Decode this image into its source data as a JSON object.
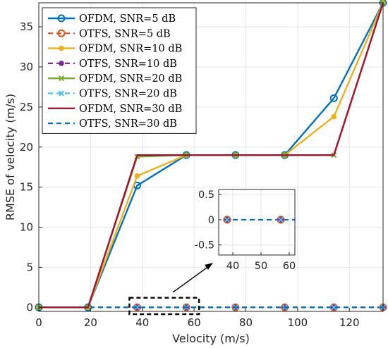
{
  "chart_data": {
    "type": "line",
    "xlabel": "Velocity (m/s)",
    "ylabel": "RMSE of velocity (m/s)",
    "xlim": [
      0,
      133
    ],
    "ylim": [
      -0.5,
      38
    ],
    "xticks": [
      0,
      20,
      40,
      60,
      80,
      100,
      120
    ],
    "yticks": [
      0,
      5,
      10,
      15,
      20,
      25,
      30,
      35
    ],
    "x": [
      0,
      19,
      38,
      57,
      76,
      95,
      114,
      133
    ],
    "grid": true,
    "legend_position": "top-left",
    "series": [
      {
        "name": "OFDM, SNR=5 dB",
        "color": "#0072bd",
        "style": "solid",
        "marker": "circle-open",
        "values": [
          0,
          0,
          15.2,
          19,
          19,
          19,
          26.1,
          38
        ]
      },
      {
        "name": "OTFS, SNR=5 dB",
        "color": "#d95319",
        "style": "dashed",
        "marker": "circle-open",
        "values": [
          0,
          0,
          0,
          0,
          0,
          0,
          0,
          0
        ]
      },
      {
        "name": "OFDM, SNR=10 dB",
        "color": "#edb120",
        "style": "solid",
        "marker": "dot",
        "values": [
          0,
          0,
          16.4,
          19,
          19,
          19,
          23.8,
          38
        ]
      },
      {
        "name": "OTFS, SNR=10 dB",
        "color": "#7e2f8e",
        "style": "dashed",
        "marker": "dot",
        "values": [
          0,
          0,
          0,
          0,
          0,
          0,
          0,
          0
        ]
      },
      {
        "name": "OFDM, SNR=20 dB",
        "color": "#77ac30",
        "style": "solid",
        "marker": "x",
        "values": [
          0,
          0,
          18.8,
          19,
          19,
          19,
          19,
          38
        ]
      },
      {
        "name": "OTFS, SNR=20 dB",
        "color": "#4dbeee",
        "style": "dashed",
        "marker": "x",
        "values": [
          0,
          0,
          0,
          0,
          0,
          0,
          0,
          0
        ]
      },
      {
        "name": "OFDM, SNR=30 dB",
        "color": "#a2142f",
        "style": "solid",
        "marker": "none",
        "values": [
          0,
          0,
          19,
          19,
          19,
          19,
          19,
          38
        ]
      },
      {
        "name": "OTFS, SNR=30 dB",
        "color": "#0072bd",
        "style": "dashed",
        "marker": "none",
        "values": [
          0,
          0,
          0,
          0,
          0,
          0,
          0,
          0
        ]
      }
    ],
    "inset": {
      "xlim": [
        35,
        62
      ],
      "ylim": [
        -0.7,
        0.6
      ],
      "xticks": [
        40,
        50,
        60
      ],
      "yticks": [
        0.5,
        0,
        -0.5
      ],
      "zoom_region_x": [
        35,
        57
      ],
      "zoom_region_y": [
        -0.5,
        1.2
      ]
    }
  }
}
